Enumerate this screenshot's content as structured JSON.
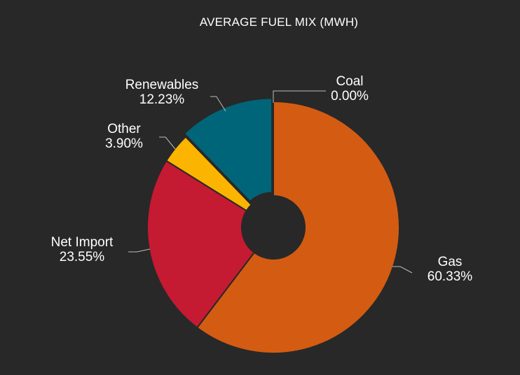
{
  "chart_data": {
    "type": "pie",
    "donut": true,
    "title": "AVERAGE FUEL MIX (MWH)",
    "slices": [
      {
        "name": "Gas",
        "value": 60.33,
        "label": "60.33%",
        "color": "#d35c12"
      },
      {
        "name": "Net Import",
        "value": 23.55,
        "label": "23.55%",
        "color": "#c41a32"
      },
      {
        "name": "Other",
        "value": 3.9,
        "label": "3.90%",
        "color": "#fbb400"
      },
      {
        "name": "Renewables",
        "value": 12.23,
        "label": "12.23%",
        "color": "#006579"
      },
      {
        "name": "Coal",
        "value": 0.0,
        "label": "0.00%",
        "color": "#555555"
      }
    ],
    "legend": "none"
  },
  "background": "#282828"
}
